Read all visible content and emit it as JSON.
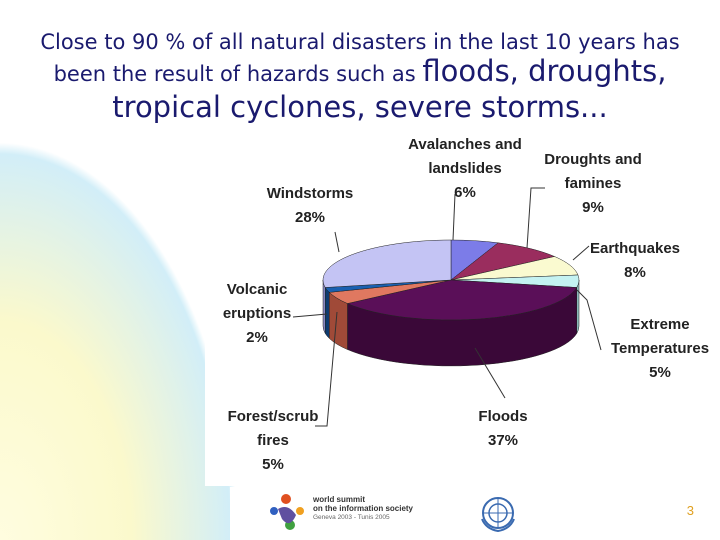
{
  "title": {
    "line1": "Close to 90 % of all natural disasters in the last 10 years has",
    "line2_small": "been the result of hazards such as ",
    "line2_big": "floods, droughts,",
    "line3": "tropical cyclones, severe storms..."
  },
  "chart_data": {
    "type": "pie",
    "slices": [
      {
        "label": "Avalanches and landslides",
        "label_lines": [
          "Avalanches and",
          "landslides"
        ],
        "value": 6,
        "value_label": "6%",
        "color": "#7c7ce8",
        "side": "#4a4aa8"
      },
      {
        "label": "Droughts and famines",
        "label_lines": [
          "Droughts and",
          "famines"
        ],
        "value": 9,
        "value_label": "9%",
        "color": "#9a2d5e",
        "side": "#6a1a3e"
      },
      {
        "label": "Earthquakes",
        "label_lines": [
          "Earthquakes"
        ],
        "value": 8,
        "value_label": "8%",
        "color": "#fafad0",
        "side": "#c8c8a0"
      },
      {
        "label": "Extreme Temperatures",
        "label_lines": [
          "Extreme",
          "Temperatures"
        ],
        "value": 5,
        "value_label": "5%",
        "color": "#c4f2f2",
        "side": "#8ab8b8"
      },
      {
        "label": "Floods",
        "label_lines": [
          "Floods"
        ],
        "value": 37,
        "value_label": "37%",
        "color": "#5a0f58",
        "side": "#3a0838"
      },
      {
        "label": "Forest/scrub fires",
        "label_lines": [
          "Forest/scrub",
          "fires"
        ],
        "value": 5,
        "value_label": "5%",
        "color": "#e07860",
        "side": "#a04a38"
      },
      {
        "label": "Volcanic eruptions",
        "label_lines": [
          "Volcanic",
          "eruptions"
        ],
        "value": 2,
        "value_label": "2%",
        "color": "#1a60b0",
        "side": "#0e3c70"
      },
      {
        "label": "Windstorms",
        "label_lines": [
          "Windstorms"
        ],
        "value": 28,
        "value_label": "28%",
        "color": "#c4c4f4",
        "side": "#8888c0"
      }
    ]
  },
  "footer": {
    "logo_line1": "world summit",
    "logo_line2": "on the information society",
    "logo_line3": "Geneva 2003 - Tunis 2005",
    "page_number": "3"
  },
  "icons": [
    "wsis-logo-icon",
    "wmo-emblem-icon"
  ]
}
